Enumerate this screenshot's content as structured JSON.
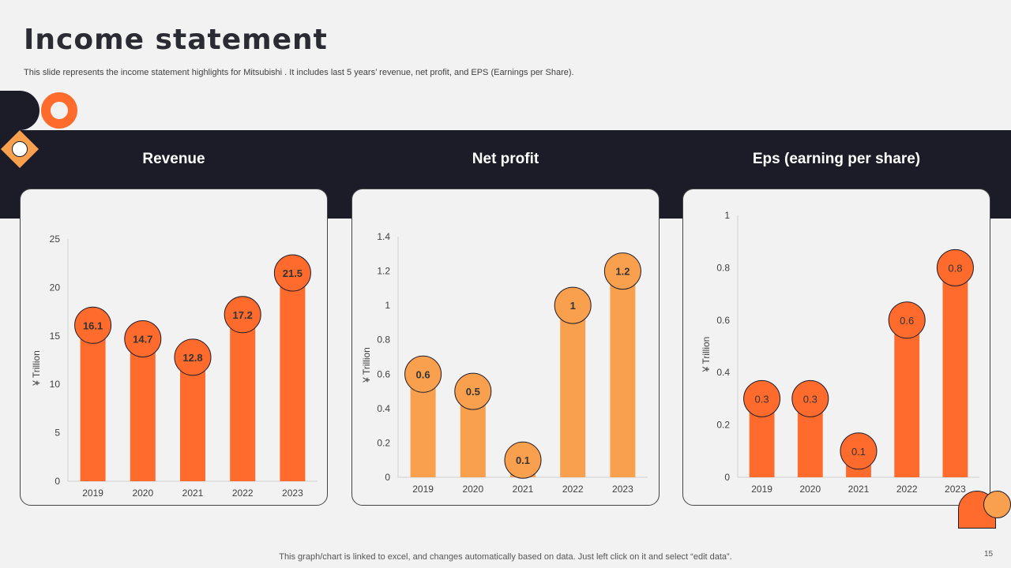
{
  "title": "Income statement",
  "subtitle": "This slide represents the income statement highlights for Mitsubishi . It includes last 5 years’ revenue, net profit,  and EPS (Earnings per Share).",
  "footer": "This graph/chart is linked to excel,  and changes automatically based on data. Just left click on it and select “edit data”.",
  "page_number": "15",
  "colors": {
    "dark": "#1c1b28",
    "orange": "#ff6b2c",
    "light_orange": "#f9a04e",
    "background": "#f2f2f2"
  },
  "chart_data": [
    {
      "type": "bar",
      "title": "Revenue",
      "categories": [
        "2019",
        "2020",
        "2021",
        "2022",
        "2023"
      ],
      "values": [
        16.1,
        14.7,
        12.8,
        17.2,
        21.5
      ],
      "value_labels": [
        "16.1",
        "14.7",
        "12.8",
        "17.2",
        "21.5"
      ],
      "ylabel": "¥ Trillion",
      "ylim": [
        0,
        25
      ],
      "yticks": [
        0,
        5,
        10,
        15,
        20,
        25
      ],
      "ytick_labels": [
        "0",
        "5",
        "10",
        "15",
        "20",
        "25"
      ],
      "bar_color": "#ff6b2c",
      "bold_labels": true
    },
    {
      "type": "bar",
      "title": "Net profit",
      "categories": [
        "2019",
        "2020",
        "2021",
        "2022",
        "2023"
      ],
      "values": [
        0.6,
        0.5,
        0.1,
        1,
        1.2
      ],
      "value_labels": [
        "0.6",
        "0.5",
        "0.1",
        "1",
        "1.2"
      ],
      "ylabel": "¥ Trillion",
      "ylim": [
        0,
        1.4
      ],
      "yticks": [
        0,
        0.2,
        0.4,
        0.6,
        0.8,
        1,
        1.2,
        1.4
      ],
      "ytick_labels": [
        "0",
        "0.2",
        "0.4",
        "0.6",
        "0.8",
        "1",
        "1.2",
        "1.4"
      ],
      "bar_color": "#f9a04e",
      "bold_labels": true
    },
    {
      "type": "bar",
      "title": "Eps (earning per share)",
      "categories": [
        "2019",
        "2020",
        "2021",
        "2022",
        "2023"
      ],
      "values": [
        0.3,
        0.3,
        0.1,
        0.6,
        0.8
      ],
      "value_labels": [
        "0.3",
        "0.3",
        "0.1",
        "0.6",
        "0.8"
      ],
      "ylabel": "¥ Trillion",
      "ylim": [
        0,
        1
      ],
      "yticks": [
        0,
        0.2,
        0.4,
        0.6,
        0.8,
        1
      ],
      "ytick_labels": [
        "0",
        "0.2",
        "0.4",
        "0.6",
        "0.8",
        "1"
      ],
      "bar_color": "#ff6b2c",
      "bold_labels": false
    }
  ]
}
